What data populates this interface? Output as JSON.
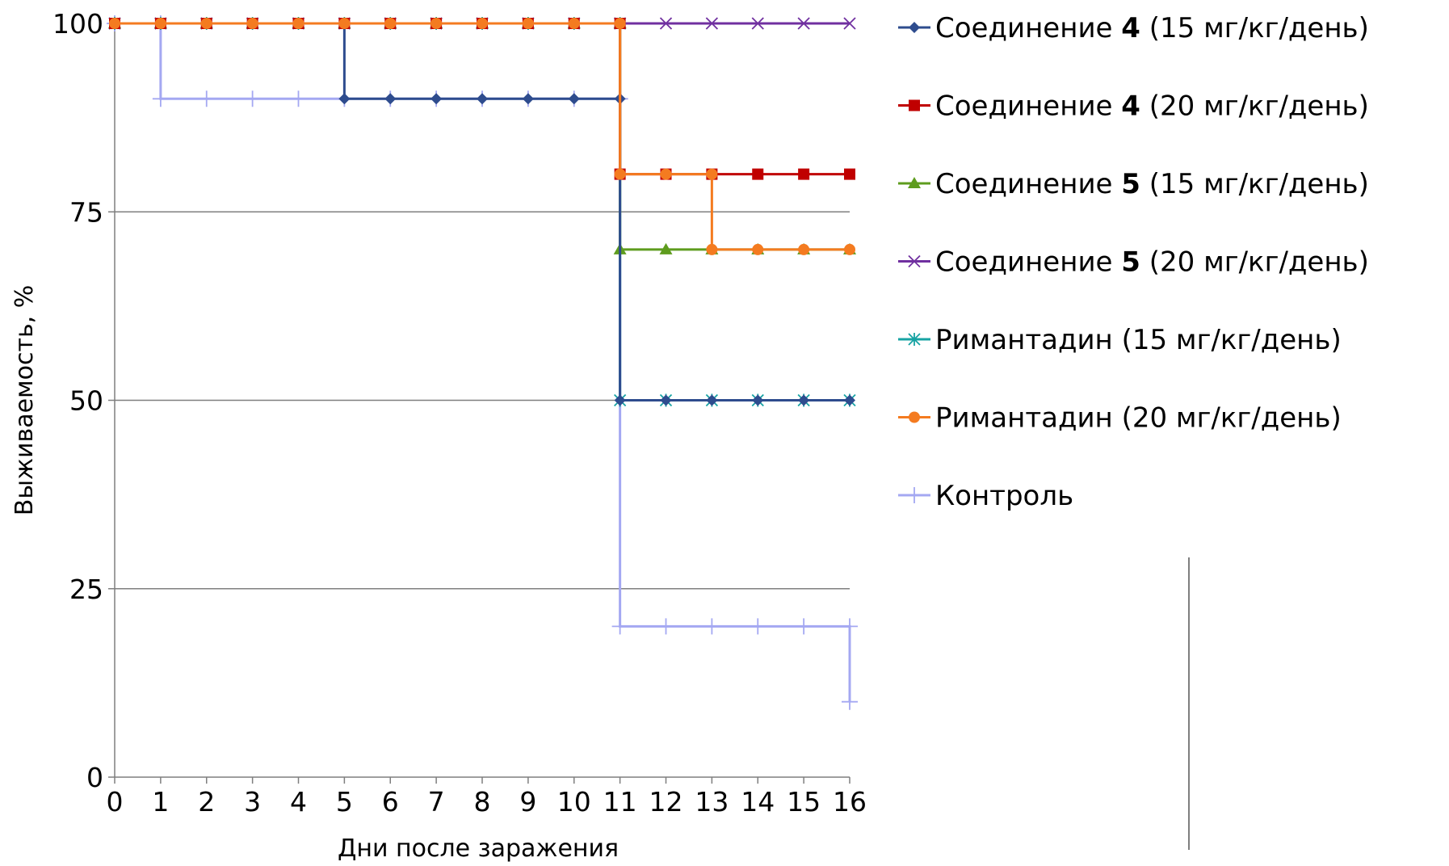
{
  "chart_data": {
    "type": "line",
    "step": true,
    "xlabel": "Дни после заражения",
    "ylabel": "Выживаемость, %",
    "x_ticks": [
      "0",
      "1",
      "2",
      "3",
      "4",
      "5",
      "6",
      "7",
      "8",
      "9",
      "10",
      "11",
      "12",
      "13",
      "14",
      "15",
      "16"
    ],
    "y_ticks": [
      "0",
      "25",
      "50",
      "75",
      "100"
    ],
    "xlim": [
      0,
      16
    ],
    "ylim": [
      0,
      100
    ],
    "grid": "horizontal",
    "legend_position": "right",
    "series": [
      {
        "name": "Соединение 4 (15 мг/кг/день)",
        "label_parts": [
          "Соединение ",
          "4",
          " (15 мг/кг/день)"
        ],
        "color": "#2E4C8E",
        "marker": "diamond",
        "points": [
          [
            0,
            100
          ],
          [
            1,
            100
          ],
          [
            2,
            100
          ],
          [
            3,
            100
          ],
          [
            4,
            100
          ],
          [
            5,
            100
          ],
          [
            5,
            90
          ],
          [
            6,
            90
          ],
          [
            7,
            90
          ],
          [
            8,
            90
          ],
          [
            9,
            90
          ],
          [
            10,
            90
          ],
          [
            11,
            90
          ],
          [
            11,
            50
          ],
          [
            12,
            50
          ],
          [
            13,
            50
          ],
          [
            14,
            50
          ],
          [
            15,
            50
          ],
          [
            16,
            50
          ]
        ]
      },
      {
        "name": "Соединение 4 (20 мг/кг/день)",
        "label_parts": [
          "Соединение ",
          "4",
          " (20 мг/кг/день)"
        ],
        "color": "#C00000",
        "marker": "square",
        "points": [
          [
            0,
            100
          ],
          [
            1,
            100
          ],
          [
            2,
            100
          ],
          [
            3,
            100
          ],
          [
            4,
            100
          ],
          [
            5,
            100
          ],
          [
            6,
            100
          ],
          [
            7,
            100
          ],
          [
            8,
            100
          ],
          [
            9,
            100
          ],
          [
            10,
            100
          ],
          [
            11,
            100
          ],
          [
            11,
            80
          ],
          [
            12,
            80
          ],
          [
            13,
            80
          ],
          [
            14,
            80
          ],
          [
            15,
            80
          ],
          [
            16,
            80
          ]
        ]
      },
      {
        "name": "Соединение 5 (15 мг/кг/день)",
        "label_parts": [
          "Соединение ",
          "5",
          " (15 мг/кг/день)"
        ],
        "color": "#5E9C1E",
        "marker": "triangle",
        "points": [
          [
            0,
            100
          ],
          [
            1,
            100
          ],
          [
            2,
            100
          ],
          [
            3,
            100
          ],
          [
            4,
            100
          ],
          [
            5,
            100
          ],
          [
            6,
            100
          ],
          [
            7,
            100
          ],
          [
            8,
            100
          ],
          [
            9,
            100
          ],
          [
            10,
            100
          ],
          [
            11,
            100
          ],
          [
            11,
            70
          ],
          [
            12,
            70
          ],
          [
            13,
            70
          ],
          [
            14,
            70
          ],
          [
            15,
            70
          ],
          [
            16,
            70
          ]
        ]
      },
      {
        "name": "Соединение 5 (20 мг/кг/день)",
        "label_parts": [
          "Соединение ",
          "5",
          " (20 мг/кг/день)"
        ],
        "color": "#7030A0",
        "marker": "x",
        "points": [
          [
            0,
            100
          ],
          [
            1,
            100
          ],
          [
            2,
            100
          ],
          [
            3,
            100
          ],
          [
            4,
            100
          ],
          [
            5,
            100
          ],
          [
            6,
            100
          ],
          [
            7,
            100
          ],
          [
            8,
            100
          ],
          [
            9,
            100
          ],
          [
            10,
            100
          ],
          [
            11,
            100
          ],
          [
            12,
            100
          ],
          [
            13,
            100
          ],
          [
            14,
            100
          ],
          [
            15,
            100
          ],
          [
            16,
            100
          ]
        ]
      },
      {
        "name": "Римантадин (15 мг/кг/день)",
        "label_parts": [
          "Римантадин (15 мг/кг/день)"
        ],
        "color": "#17A3A3",
        "marker": "star",
        "points": [
          [
            0,
            100
          ],
          [
            1,
            100
          ],
          [
            2,
            100
          ],
          [
            3,
            100
          ],
          [
            4,
            100
          ],
          [
            5,
            100
          ],
          [
            6,
            100
          ],
          [
            7,
            100
          ],
          [
            8,
            100
          ],
          [
            9,
            100
          ],
          [
            10,
            100
          ],
          [
            11,
            100
          ],
          [
            11,
            50
          ],
          [
            12,
            50
          ],
          [
            13,
            50
          ],
          [
            14,
            50
          ],
          [
            15,
            50
          ],
          [
            16,
            50
          ]
        ]
      },
      {
        "name": "Римантадин (20 мг/кг/день)",
        "label_parts": [
          "Римантадин (20 мг/кг/день)"
        ],
        "color": "#F47B20",
        "marker": "circle",
        "points": [
          [
            0,
            100
          ],
          [
            1,
            100
          ],
          [
            2,
            100
          ],
          [
            3,
            100
          ],
          [
            4,
            100
          ],
          [
            5,
            100
          ],
          [
            6,
            100
          ],
          [
            7,
            100
          ],
          [
            8,
            100
          ],
          [
            9,
            100
          ],
          [
            10,
            100
          ],
          [
            11,
            100
          ],
          [
            11,
            80
          ],
          [
            12,
            80
          ],
          [
            13,
            80
          ],
          [
            13,
            70
          ],
          [
            14,
            70
          ],
          [
            15,
            70
          ],
          [
            16,
            70
          ]
        ]
      },
      {
        "name": "Контроль",
        "label_parts": [
          "Контроль"
        ],
        "color": "#A4A8F2",
        "marker": "plus",
        "points": [
          [
            0,
            100
          ],
          [
            1,
            100
          ],
          [
            1,
            90
          ],
          [
            2,
            90
          ],
          [
            3,
            90
          ],
          [
            4,
            90
          ],
          [
            5,
            90
          ],
          [
            6,
            90
          ],
          [
            7,
            90
          ],
          [
            8,
            90
          ],
          [
            9,
            90
          ],
          [
            10,
            90
          ],
          [
            11,
            90
          ],
          [
            11,
            20
          ],
          [
            12,
            20
          ],
          [
            13,
            20
          ],
          [
            14,
            20
          ],
          [
            15,
            20
          ],
          [
            16,
            20
          ],
          [
            16,
            10
          ]
        ]
      }
    ]
  }
}
